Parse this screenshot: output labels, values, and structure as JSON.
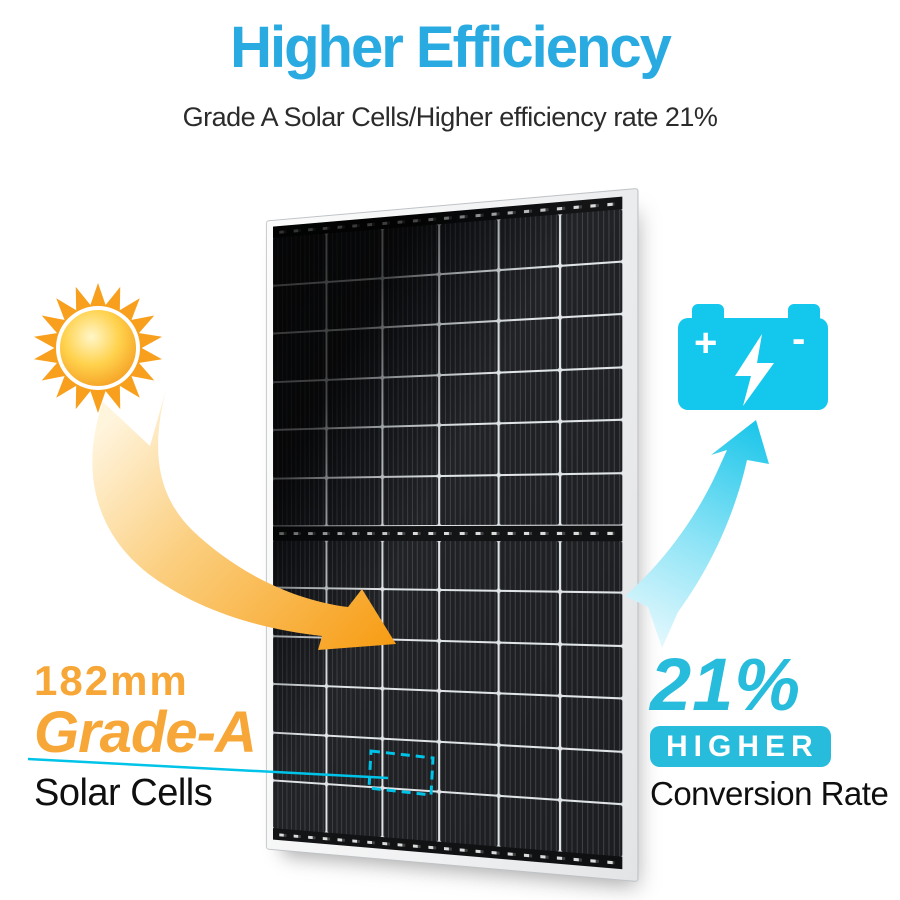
{
  "header": {
    "title": "Higher Efficiency",
    "subtitle": "Grade A Solar Cells/Higher efficiency rate 21%"
  },
  "left_callout": {
    "size_label": "182mm",
    "grade_label": "Grade-A",
    "caption": "Solar Cells"
  },
  "right_callout": {
    "percent": "21%",
    "badge": "HIGHER",
    "caption": "Conversion Rate"
  },
  "battery": {
    "plus": "+",
    "minus": "-"
  },
  "panel": {
    "columns": 6,
    "rows_per_half": 6,
    "halves": 2
  },
  "colors": {
    "title_blue": "#29ABE2",
    "callout_cyan": "#27BCDB",
    "battery_cyan": "#14C7EC",
    "orange": "#F7A737",
    "dash_cyan": "#00C3E8",
    "sun_orange": "#F8A01E"
  }
}
